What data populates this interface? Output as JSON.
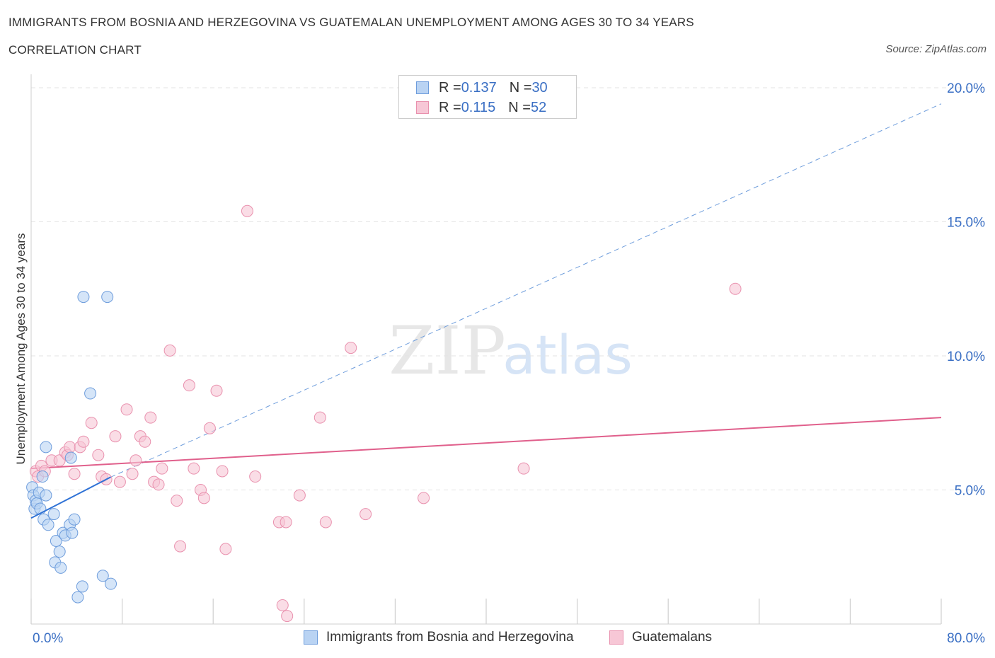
{
  "header": {
    "title": "IMMIGRANTS FROM BOSNIA AND HERZEGOVINA VS GUATEMALAN UNEMPLOYMENT AMONG AGES 30 TO 34 YEARS",
    "subtitle": "CORRELATION CHART",
    "source": "Source: ZipAtlas.com"
  },
  "watermark": {
    "zip": "ZIP",
    "atlas": "atlas"
  },
  "colors": {
    "blue_fill": "#b9d3f3",
    "blue_stroke": "#6e9ddc",
    "blue_line": "#2f72d6",
    "pink_fill": "#f7c7d6",
    "pink_stroke": "#e991ae",
    "pink_line": "#e0608c",
    "axis_text": "#3a6fc4",
    "grid": "#e3e3e3"
  },
  "legend": {
    "rows": [
      {
        "r_label": "R = ",
        "r_value": "0.137",
        "n_label": "N = ",
        "n_value": "30"
      },
      {
        "r_label": "R = ",
        "r_value": "0.115",
        "n_label": "N = ",
        "n_value": "52"
      }
    ]
  },
  "chart_data": {
    "type": "scatter",
    "title": "IMMIGRANTS FROM BOSNIA AND HERZEGOVINA VS GUATEMALAN UNEMPLOYMENT AMONG AGES 30 TO 34 YEARS",
    "xlabel": "",
    "ylabel": "Unemployment Among Ages 30 to 34 years",
    "xlim": [
      0,
      80
    ],
    "ylim": [
      0,
      20.5
    ],
    "x_tick_labels": [
      "0.0%",
      "80.0%"
    ],
    "y_ticks": [
      5,
      10,
      15,
      20
    ],
    "y_tick_labels": [
      "5.0%",
      "10.0%",
      "15.0%",
      "20.0%"
    ],
    "x_tick_marks": [
      0,
      8,
      16,
      24,
      32,
      40,
      48,
      56,
      64,
      72,
      80
    ],
    "series": [
      {
        "name": "Immigrants from Bosnia and Herzegovina",
        "color": "blue",
        "R": 0.137,
        "N": 30,
        "points": [
          [
            0.1,
            5.1
          ],
          [
            0.2,
            4.8
          ],
          [
            0.3,
            4.3
          ],
          [
            0.4,
            4.6
          ],
          [
            0.5,
            4.5
          ],
          [
            0.7,
            4.9
          ],
          [
            0.8,
            4.3
          ],
          [
            1.0,
            5.5
          ],
          [
            1.1,
            3.9
          ],
          [
            1.3,
            4.8
          ],
          [
            1.3,
            6.6
          ],
          [
            1.5,
            3.7
          ],
          [
            2.0,
            4.1
          ],
          [
            2.1,
            2.3
          ],
          [
            2.2,
            3.1
          ],
          [
            2.5,
            2.7
          ],
          [
            2.6,
            2.1
          ],
          [
            2.8,
            3.4
          ],
          [
            3.0,
            3.3
          ],
          [
            3.4,
            3.7
          ],
          [
            3.5,
            6.2
          ],
          [
            3.6,
            3.4
          ],
          [
            3.8,
            3.9
          ],
          [
            4.1,
            1.0
          ],
          [
            4.5,
            1.4
          ],
          [
            4.6,
            12.2
          ],
          [
            5.2,
            8.6
          ],
          [
            6.3,
            1.8
          ],
          [
            6.7,
            12.2
          ],
          [
            7.0,
            1.5
          ]
        ],
        "trend_solid": {
          "x": [
            0,
            7.0
          ],
          "y": [
            3.95,
            5.48
          ]
        },
        "trend_dashed": {
          "x": [
            7.0,
            80
          ],
          "y": [
            5.48,
            19.4
          ]
        }
      },
      {
        "name": "Guatemalans",
        "color": "pink",
        "R": 0.115,
        "N": 52,
        "points": [
          [
            0.4,
            5.7
          ],
          [
            0.6,
            5.5
          ],
          [
            0.9,
            5.9
          ],
          [
            1.2,
            5.7
          ],
          [
            1.8,
            6.1
          ],
          [
            2.5,
            6.1
          ],
          [
            3.0,
            6.4
          ],
          [
            3.2,
            6.3
          ],
          [
            3.4,
            6.6
          ],
          [
            3.8,
            5.6
          ],
          [
            4.3,
            6.6
          ],
          [
            4.6,
            6.8
          ],
          [
            5.3,
            7.5
          ],
          [
            5.9,
            6.3
          ],
          [
            6.2,
            5.5
          ],
          [
            6.6,
            5.4
          ],
          [
            7.4,
            7.0
          ],
          [
            7.8,
            5.3
          ],
          [
            8.4,
            8.0
          ],
          [
            8.9,
            5.6
          ],
          [
            9.2,
            6.1
          ],
          [
            9.6,
            7.0
          ],
          [
            10.0,
            6.8
          ],
          [
            10.5,
            7.7
          ],
          [
            10.8,
            5.3
          ],
          [
            11.2,
            5.2
          ],
          [
            11.5,
            5.8
          ],
          [
            12.2,
            10.2
          ],
          [
            12.8,
            4.6
          ],
          [
            13.1,
            2.9
          ],
          [
            13.9,
            8.9
          ],
          [
            14.3,
            5.8
          ],
          [
            14.9,
            5.0
          ],
          [
            15.2,
            4.7
          ],
          [
            15.7,
            7.3
          ],
          [
            16.3,
            8.7
          ],
          [
            16.8,
            5.7
          ],
          [
            17.1,
            2.8
          ],
          [
            19.0,
            15.4
          ],
          [
            19.7,
            5.5
          ],
          [
            21.8,
            3.8
          ],
          [
            22.1,
            0.7
          ],
          [
            22.4,
            3.8
          ],
          [
            22.5,
            0.3
          ],
          [
            23.6,
            4.8
          ],
          [
            25.4,
            7.7
          ],
          [
            25.9,
            3.8
          ],
          [
            28.1,
            10.3
          ],
          [
            29.4,
            4.1
          ],
          [
            34.5,
            4.7
          ],
          [
            43.3,
            5.8
          ],
          [
            61.9,
            12.5
          ]
        ],
        "trend_solid": {
          "x": [
            0,
            80
          ],
          "y": [
            5.8,
            7.7
          ]
        }
      }
    ]
  }
}
